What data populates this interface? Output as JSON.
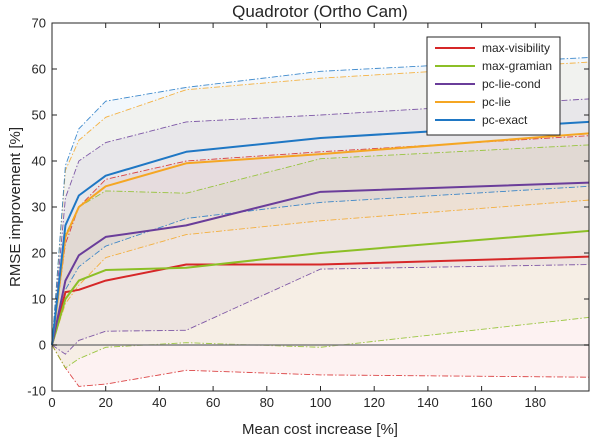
{
  "chart_data": {
    "type": "line",
    "title": "Quadrotor (Ortho Cam)",
    "xlabel": "Mean cost increase [%]",
    "ylabel": "RMSE improvement [%]",
    "xlim": [
      0,
      200
    ],
    "ylim": [
      -10,
      70
    ],
    "xticks": [
      0,
      20,
      40,
      60,
      80,
      100,
      120,
      140,
      160,
      180
    ],
    "yticks": [
      -10,
      0,
      10,
      20,
      30,
      40,
      50,
      60,
      70
    ],
    "grid": false,
    "legend_position": "top-right",
    "x": [
      0,
      5,
      10,
      20,
      50,
      100,
      200
    ],
    "zero_line": 0,
    "series": [
      {
        "name": "max-visibility",
        "color": "#d62728",
        "values": [
          0,
          11.5,
          12,
          14,
          17.5,
          17.5,
          19.2
        ],
        "upper": [
          0,
          22,
          30,
          36,
          40,
          42,
          45.5
        ],
        "lower": [
          0,
          -5,
          -9,
          -8.5,
          -5.5,
          -6.5,
          -7
        ]
      },
      {
        "name": "max-gramian",
        "color": "#8cbf26",
        "values": [
          0,
          10,
          14,
          16.3,
          16.8,
          20,
          24.8
        ],
        "upper": [
          0,
          24,
          30,
          33.5,
          33,
          40.5,
          43.5
        ],
        "lower": [
          0,
          -5,
          -3,
          -0.5,
          0.5,
          -0.5,
          6
        ]
      },
      {
        "name": "pc-lie-cond",
        "color": "#6a3d9a",
        "values": [
          0,
          14,
          19.5,
          23.5,
          26,
          33.3,
          35.3
        ],
        "upper": [
          0,
          32,
          40,
          44,
          48.5,
          50,
          53.5
        ],
        "lower": [
          0,
          -2,
          1,
          3,
          3.2,
          16.5,
          17.5
        ]
      },
      {
        "name": "pc-lie",
        "color": "#f5a623",
        "values": [
          0,
          23.5,
          30,
          34.5,
          39.5,
          41.5,
          46
        ],
        "upper": [
          0,
          38,
          44.5,
          49.5,
          55.5,
          58,
          61.5
        ],
        "lower": [
          0,
          9,
          13,
          19,
          24,
          27,
          31.5
        ]
      },
      {
        "name": "pc-exact",
        "color": "#1f77c4",
        "values": [
          0,
          26,
          32.5,
          36.8,
          42,
          45,
          48.5
        ],
        "upper": [
          0,
          39,
          47,
          53,
          56,
          59.5,
          62.5
        ],
        "lower": [
          0,
          12,
          17,
          21.5,
          27.5,
          31,
          34.5
        ]
      }
    ]
  }
}
